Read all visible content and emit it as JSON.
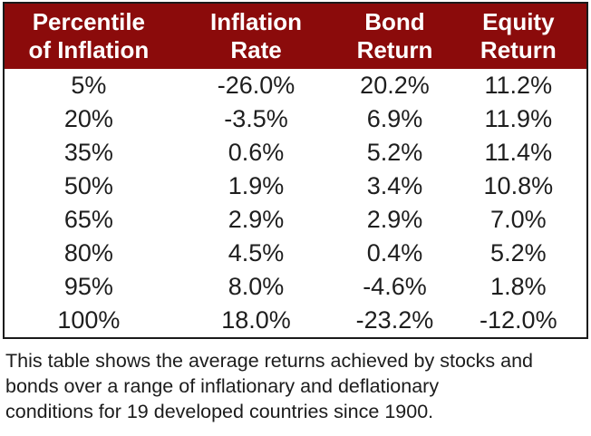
{
  "colors": {
    "header_bg": "#8b0b0b",
    "header_text": "#ffffff",
    "body_text": "#1e1e1e",
    "table_border": "#1a1a1a",
    "page_bg": "#ffffff"
  },
  "table": {
    "headers": [
      "Percentile\nof Inflation",
      "Inflation\nRate",
      "Bond\nReturn",
      "Equity\nReturn"
    ],
    "rows": [
      [
        "5%",
        "-26.0%",
        "20.2%",
        "11.2%"
      ],
      [
        "20%",
        "-3.5%",
        "6.9%",
        "11.9%"
      ],
      [
        "35%",
        "0.6%",
        "5.2%",
        "11.4%"
      ],
      [
        "50%",
        "1.9%",
        "3.4%",
        "10.8%"
      ],
      [
        "65%",
        "2.9%",
        "2.9%",
        "7.0%"
      ],
      [
        "80%",
        "4.5%",
        "0.4%",
        "5.2%"
      ],
      [
        "95%",
        "8.0%",
        "-4.6%",
        "1.8%"
      ],
      [
        "100%",
        "18.0%",
        "-23.2%",
        "-12.0%"
      ]
    ]
  },
  "caption": "This table shows the average returns achieved by stocks and\nbonds over a range of inflationary and deflationary\nconditions for 19 developed countries since 1900.",
  "chart_data": {
    "type": "table",
    "title": "",
    "columns": [
      "Percentile of Inflation",
      "Inflation Rate",
      "Bond Return",
      "Equity Return"
    ],
    "units": "percent",
    "rows": [
      [
        5,
        -26.0,
        20.2,
        11.2
      ],
      [
        20,
        -3.5,
        6.9,
        11.9
      ],
      [
        35,
        0.6,
        5.2,
        11.4
      ],
      [
        50,
        1.9,
        3.4,
        10.8
      ],
      [
        65,
        2.9,
        2.9,
        7.0
      ],
      [
        80,
        4.5,
        0.4,
        5.2
      ],
      [
        95,
        8.0,
        -4.6,
        1.8
      ],
      [
        100,
        18.0,
        -23.2,
        -12.0
      ]
    ],
    "caption": "This table shows the average returns achieved by stocks and bonds over a range of inflationary and deflationary conditions for 19 developed countries since 1900."
  }
}
